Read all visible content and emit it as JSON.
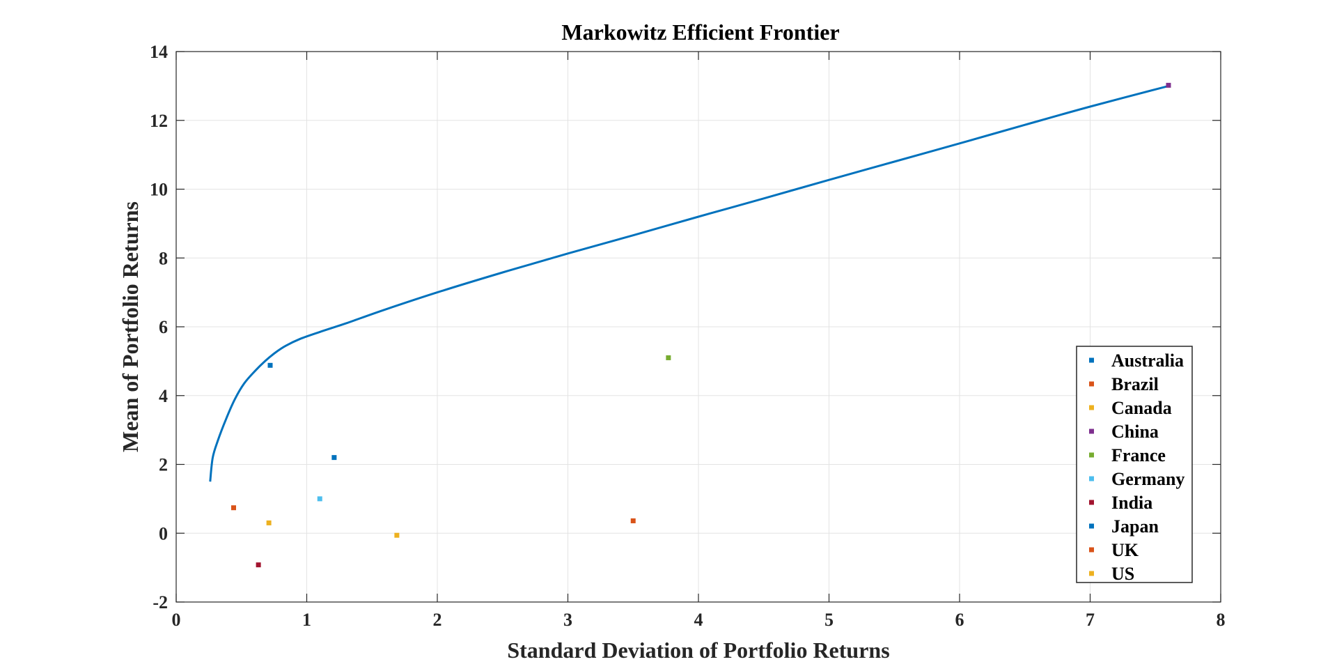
{
  "chart_data": {
    "type": "scatter",
    "title": "Markowitz Efficient Frontier",
    "xlabel": "Standard Deviation of Portfolio Returns",
    "ylabel": "Mean of Portfolio Returns",
    "xlim": [
      0,
      8
    ],
    "ylim": [
      -2,
      14
    ],
    "xticks": [
      0,
      1,
      2,
      3,
      4,
      5,
      6,
      7,
      8
    ],
    "yticks": [
      -2,
      0,
      2,
      4,
      6,
      8,
      10,
      12,
      14
    ],
    "grid": true,
    "legend_position": "right",
    "frontier": {
      "color": "#0072BD",
      "x": [
        0.26,
        0.28,
        0.32,
        0.38,
        0.45,
        0.52,
        0.6,
        0.68,
        0.76,
        0.84,
        0.95,
        1.1,
        1.3,
        1.6,
        2.0,
        2.5,
        3.0,
        3.5,
        4.0,
        4.5,
        5.0,
        5.5,
        6.0,
        6.5,
        7.0,
        7.6
      ],
      "y": [
        1.5,
        2.2,
        2.7,
        3.3,
        3.9,
        4.35,
        4.7,
        5.0,
        5.25,
        5.45,
        5.65,
        5.85,
        6.1,
        6.5,
        7.0,
        7.58,
        8.13,
        8.66,
        9.2,
        9.73,
        10.27,
        10.8,
        11.33,
        11.87,
        12.4,
        13.0
      ]
    },
    "series": [
      {
        "name": "Australia",
        "color": "#0072BD",
        "x": 0.72,
        "y": 4.88
      },
      {
        "name": "Brazil",
        "color": "#D95319",
        "x": 0.44,
        "y": 0.74
      },
      {
        "name": "Canada",
        "color": "#EDB120",
        "x": 0.71,
        "y": 0.3
      },
      {
        "name": "China",
        "color": "#7E2F8E",
        "x": 7.6,
        "y": 13.02
      },
      {
        "name": "France",
        "color": "#77AC30",
        "x": 3.77,
        "y": 5.1
      },
      {
        "name": "Germany",
        "color": "#4DBEEE",
        "x": 1.1,
        "y": 1.0
      },
      {
        "name": "India",
        "color": "#A2142F",
        "x": 0.63,
        "y": -0.92
      },
      {
        "name": "Japan",
        "color": "#0072BD",
        "x": 1.21,
        "y": 2.2
      },
      {
        "name": "UK",
        "color": "#D95319",
        "x": 3.5,
        "y": 0.36
      },
      {
        "name": "US",
        "color": "#EDB120",
        "x": 1.69,
        "y": -0.06
      }
    ]
  }
}
